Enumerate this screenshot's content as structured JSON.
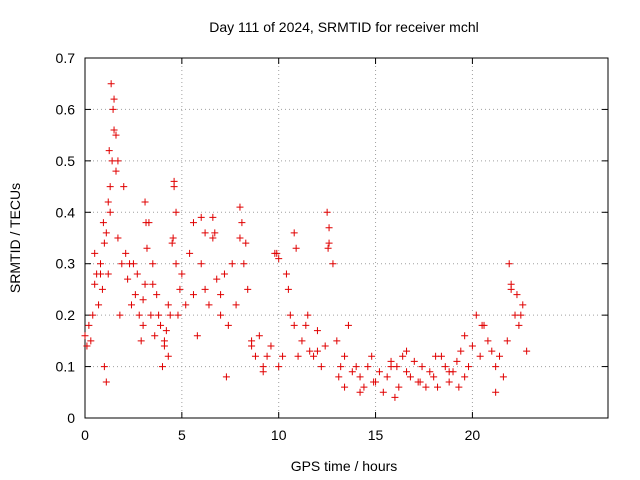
{
  "chart_data": {
    "type": "scatter",
    "title": "Day 111 of 2024, SRMTID for receiver mchl",
    "xlabel": "GPS time / hours",
    "ylabel": "SRMTID / TECUs",
    "xlim": [
      0,
      27
    ],
    "ylim": [
      0,
      0.7
    ],
    "xticks": [
      0,
      5,
      10,
      15,
      20
    ],
    "yticks": [
      0,
      0.1,
      0.2,
      0.3,
      0.4,
      0.5,
      0.6,
      0.7
    ],
    "xtick_labels": [
      "0",
      "5",
      "10",
      "15",
      "20"
    ],
    "ytick_labels": [
      "0",
      "0.1",
      "0.2",
      "0.3",
      "0.4",
      "0.5",
      "0.6",
      "0.7"
    ],
    "grid": true,
    "marker": "+",
    "color": "#e00000",
    "series": [
      {
        "name": "SRMTID",
        "x": [
          0.0,
          0.1,
          0.2,
          0.3,
          0.4,
          0.5,
          0.6,
          0.7,
          0.8,
          0.9,
          1.0,
          1.1,
          1.2,
          1.3,
          1.4,
          1.5,
          1.6,
          1.7,
          1.8,
          1.9,
          2.0,
          2.1,
          2.2,
          2.3,
          2.4,
          2.5,
          2.6,
          2.7,
          2.8,
          2.9,
          3.0,
          3.1,
          3.2,
          3.3,
          3.4,
          3.5,
          3.6,
          3.7,
          3.8,
          3.9,
          4.0,
          4.1,
          4.2,
          4.3,
          4.4,
          4.5,
          4.6,
          4.7,
          4.8,
          4.9,
          5.0,
          5.2,
          5.4,
          5.6,
          5.8,
          6.0,
          6.2,
          6.4,
          6.6,
          6.8,
          7.0,
          7.2,
          7.4,
          7.6,
          7.8,
          8.0,
          8.2,
          8.4,
          8.6,
          8.8,
          9.0,
          9.2,
          9.4,
          9.6,
          9.8,
          10.0,
          10.2,
          10.4,
          10.6,
          10.8,
          11.0,
          11.2,
          11.4,
          11.6,
          11.8,
          12.0,
          12.2,
          12.4,
          12.6,
          12.8,
          13.0,
          13.2,
          13.4,
          13.6,
          13.8,
          14.0,
          14.2,
          14.4,
          14.6,
          14.8,
          15.0,
          15.2,
          15.4,
          15.6,
          15.8,
          16.0,
          16.2,
          16.4,
          16.6,
          16.8,
          17.0,
          17.2,
          17.4,
          17.6,
          17.8,
          18.0,
          18.2,
          18.4,
          18.6,
          18.8,
          19.0,
          19.2,
          19.4,
          19.6,
          19.8,
          20.0,
          20.2,
          20.4,
          20.6,
          20.8,
          21.0,
          21.2,
          21.4,
          21.6,
          21.8,
          22.0,
          22.2,
          22.4,
          22.6,
          22.8,
          1.35,
          1.45,
          1.5,
          1.25,
          1.6,
          1.7,
          1.2,
          1.3,
          0.95,
          1.1,
          1.0,
          0.5,
          0.8,
          3.1,
          3.15,
          4.6,
          4.7,
          4.55,
          5.6,
          6.0,
          6.6,
          6.7,
          8.0,
          8.1,
          8.3,
          9.9,
          10.0,
          10.8,
          10.9,
          12.5,
          12.6,
          12.55,
          21.9,
          22.0,
          22.3,
          3.0,
          3.5,
          4.3,
          4.1,
          6.2,
          7.0,
          7.3,
          8.6,
          9.2,
          10.5,
          11.5,
          12.0,
          13.1,
          13.4,
          14.2,
          14.9,
          15.8,
          16.1,
          16.6,
          17.3,
          18.1,
          18.8,
          19.3,
          19.6,
          20.5,
          21.2,
          22.5
        ],
        "y": [
          0.16,
          0.14,
          0.18,
          0.15,
          0.2,
          0.26,
          0.28,
          0.22,
          0.3,
          0.25,
          0.1,
          0.07,
          0.28,
          0.45,
          0.5,
          0.62,
          0.55,
          0.35,
          0.2,
          0.3,
          0.45,
          0.32,
          0.27,
          0.3,
          0.22,
          0.3,
          0.24,
          0.28,
          0.2,
          0.15,
          0.18,
          0.26,
          0.33,
          0.38,
          0.2,
          0.26,
          0.16,
          0.24,
          0.2,
          0.18,
          0.1,
          0.15,
          0.17,
          0.12,
          0.2,
          0.34,
          0.45,
          0.3,
          0.2,
          0.25,
          0.28,
          0.22,
          0.32,
          0.24,
          0.16,
          0.3,
          0.25,
          0.22,
          0.35,
          0.27,
          0.2,
          0.28,
          0.18,
          0.3,
          0.22,
          0.35,
          0.3,
          0.25,
          0.15,
          0.12,
          0.16,
          0.1,
          0.12,
          0.14,
          0.32,
          0.1,
          0.12,
          0.28,
          0.2,
          0.18,
          0.12,
          0.15,
          0.18,
          0.13,
          0.12,
          0.13,
          0.1,
          0.14,
          0.34,
          0.3,
          0.15,
          0.1,
          0.12,
          0.18,
          0.09,
          0.1,
          0.08,
          0.06,
          0.1,
          0.12,
          0.07,
          0.09,
          0.05,
          0.08,
          0.1,
          0.04,
          0.06,
          0.12,
          0.09,
          0.08,
          0.11,
          0.07,
          0.1,
          0.06,
          0.09,
          0.08,
          0.06,
          0.12,
          0.1,
          0.07,
          0.09,
          0.11,
          0.13,
          0.08,
          0.1,
          0.14,
          0.2,
          0.12,
          0.18,
          0.15,
          0.13,
          0.1,
          0.12,
          0.08,
          0.15,
          0.25,
          0.2,
          0.18,
          0.22,
          0.13,
          0.65,
          0.6,
          0.56,
          0.52,
          0.48,
          0.5,
          0.42,
          0.4,
          0.38,
          0.36,
          0.34,
          0.32,
          0.28,
          0.42,
          0.38,
          0.46,
          0.4,
          0.35,
          0.38,
          0.39,
          0.39,
          0.36,
          0.41,
          0.38,
          0.34,
          0.32,
          0.31,
          0.36,
          0.33,
          0.4,
          0.37,
          0.33,
          0.3,
          0.26,
          0.24,
          0.23,
          0.3,
          0.22,
          0.14,
          0.36,
          0.24,
          0.08,
          0.14,
          0.09,
          0.25,
          0.2,
          0.17,
          0.08,
          0.06,
          0.05,
          0.07,
          0.11,
          0.1,
          0.13,
          0.07,
          0.12,
          0.09,
          0.06,
          0.16,
          0.18,
          0.05,
          0.2
        ]
      }
    ]
  }
}
